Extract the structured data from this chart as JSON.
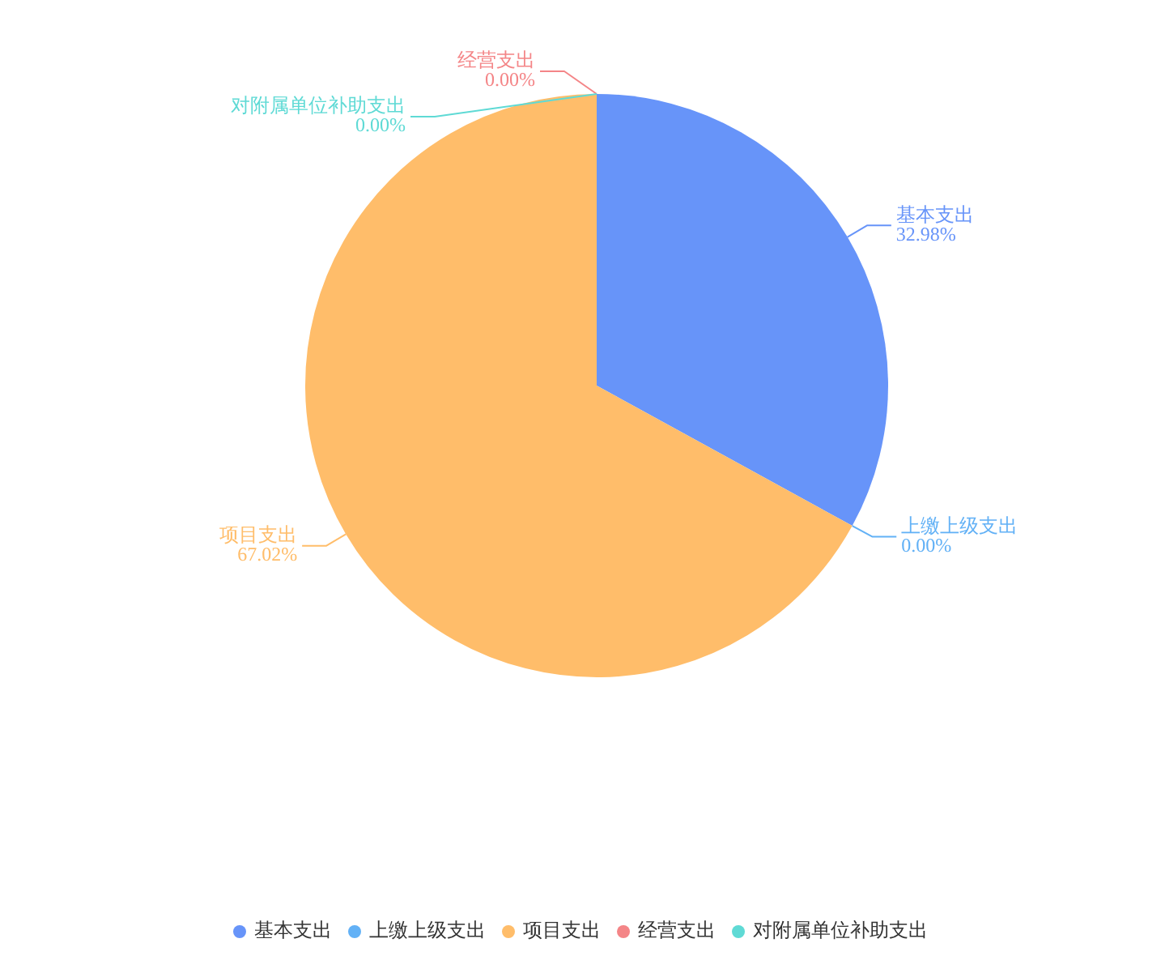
{
  "chart_data": {
    "type": "pie",
    "categories": [
      "基本支出",
      "上缴上级支出",
      "项目支出",
      "经营支出",
      "对附属单位补助支出"
    ],
    "values": [
      32.98,
      0,
      67.02,
      0,
      0
    ],
    "colors": [
      "#6794f9",
      "#62b1f6",
      "#ffbd6a",
      "#f48587",
      "#5fdad5"
    ],
    "value_labels": [
      "32.98%",
      "0.00%",
      "67.02%",
      "0.00%",
      "0.00%"
    ],
    "legend": "bottom"
  }
}
